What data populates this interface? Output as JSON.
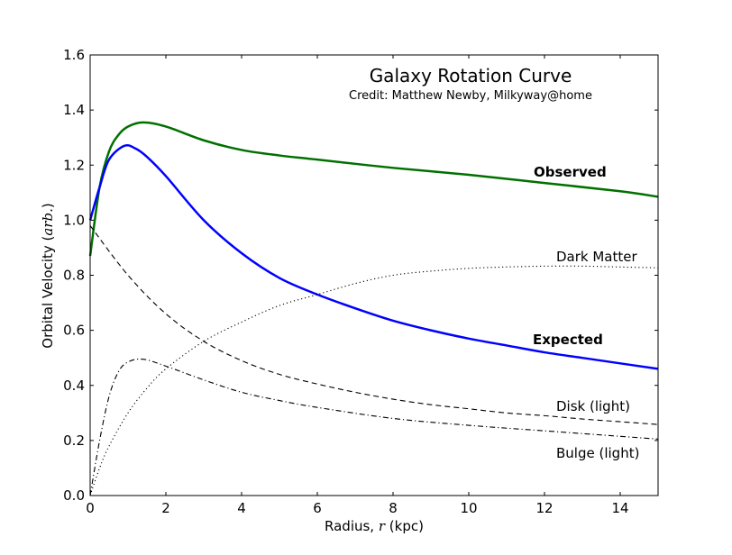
{
  "chart_data": {
    "type": "line",
    "title": "Galaxy Rotation Curve",
    "subtitle": "Credit:  Matthew Newby, Milkyway@home",
    "xlabel": "Radius, r (kpc)",
    "xlabel_parts": {
      "pre": "Radius, ",
      "var": "r",
      "post": " (kpc)"
    },
    "ylabel": "Orbital Velocity (arb.)",
    "ylabel_parts": {
      "pre": "Orbital Velocity (",
      "var": "arb.",
      "post": ")"
    },
    "xlim": [
      0,
      15
    ],
    "ylim": [
      0,
      1.6
    ],
    "xticks": [
      "0",
      "2",
      "4",
      "6",
      "8",
      "10",
      "12",
      "14"
    ],
    "yticks": [
      "0.0",
      "0.2",
      "0.4",
      "0.6",
      "0.8",
      "1.0",
      "1.2",
      "1.4",
      "1.6"
    ],
    "grid": false,
    "series": [
      {
        "name": "Observed",
        "color": "#007000",
        "style": "solid",
        "bold_label": true,
        "x": [
          0,
          0.25,
          0.5,
          0.75,
          1,
          1.4,
          2,
          3,
          4,
          5,
          6,
          8,
          10,
          12,
          14,
          15
        ],
        "y": [
          0.87,
          1.12,
          1.25,
          1.31,
          1.34,
          1.355,
          1.34,
          1.29,
          1.255,
          1.235,
          1.22,
          1.19,
          1.165,
          1.135,
          1.105,
          1.085
        ]
      },
      {
        "name": "Expected",
        "color": "#0000ff",
        "style": "solid",
        "bold_label": true,
        "x": [
          0,
          0.25,
          0.5,
          0.9,
          1.2,
          1.5,
          2,
          3,
          4,
          5,
          6,
          7,
          8,
          9,
          10,
          11,
          12,
          13,
          14,
          15
        ],
        "y": [
          1.0,
          1.12,
          1.22,
          1.27,
          1.26,
          1.23,
          1.16,
          1.0,
          0.88,
          0.79,
          0.73,
          0.68,
          0.635,
          0.6,
          0.57,
          0.545,
          0.52,
          0.5,
          0.48,
          0.46
        ]
      },
      {
        "name": "Dark Matter",
        "color": "#000000",
        "style": "dotted",
        "bold_label": false,
        "x": [
          0,
          0.25,
          0.5,
          1,
          1.5,
          2,
          3,
          4,
          5,
          6,
          7,
          8,
          9,
          10,
          11,
          12,
          13,
          14,
          15
        ],
        "y": [
          0.0,
          0.1,
          0.18,
          0.3,
          0.39,
          0.46,
          0.56,
          0.63,
          0.69,
          0.73,
          0.77,
          0.8,
          0.815,
          0.825,
          0.83,
          0.833,
          0.833,
          0.83,
          0.827
        ]
      },
      {
        "name": "Disk (light)",
        "color": "#000000",
        "style": "dashed",
        "bold_label": false,
        "x": [
          0,
          1,
          2,
          3,
          4,
          5,
          6,
          7,
          8,
          9,
          10,
          11,
          12,
          13,
          14,
          15
        ],
        "y": [
          0.98,
          0.8,
          0.66,
          0.56,
          0.49,
          0.44,
          0.405,
          0.375,
          0.35,
          0.33,
          0.315,
          0.3,
          0.29,
          0.278,
          0.268,
          0.258
        ]
      },
      {
        "name": "Bulge (light)",
        "color": "#000000",
        "style": "dashdot",
        "bold_label": false,
        "x": [
          0,
          0.25,
          0.5,
          0.75,
          1,
          1.4,
          2,
          3,
          4,
          5,
          6,
          8,
          10,
          12,
          14,
          15
        ],
        "y": [
          0.0,
          0.2,
          0.36,
          0.45,
          0.485,
          0.495,
          0.47,
          0.42,
          0.375,
          0.345,
          0.32,
          0.28,
          0.255,
          0.235,
          0.215,
          0.205
        ]
      }
    ]
  }
}
